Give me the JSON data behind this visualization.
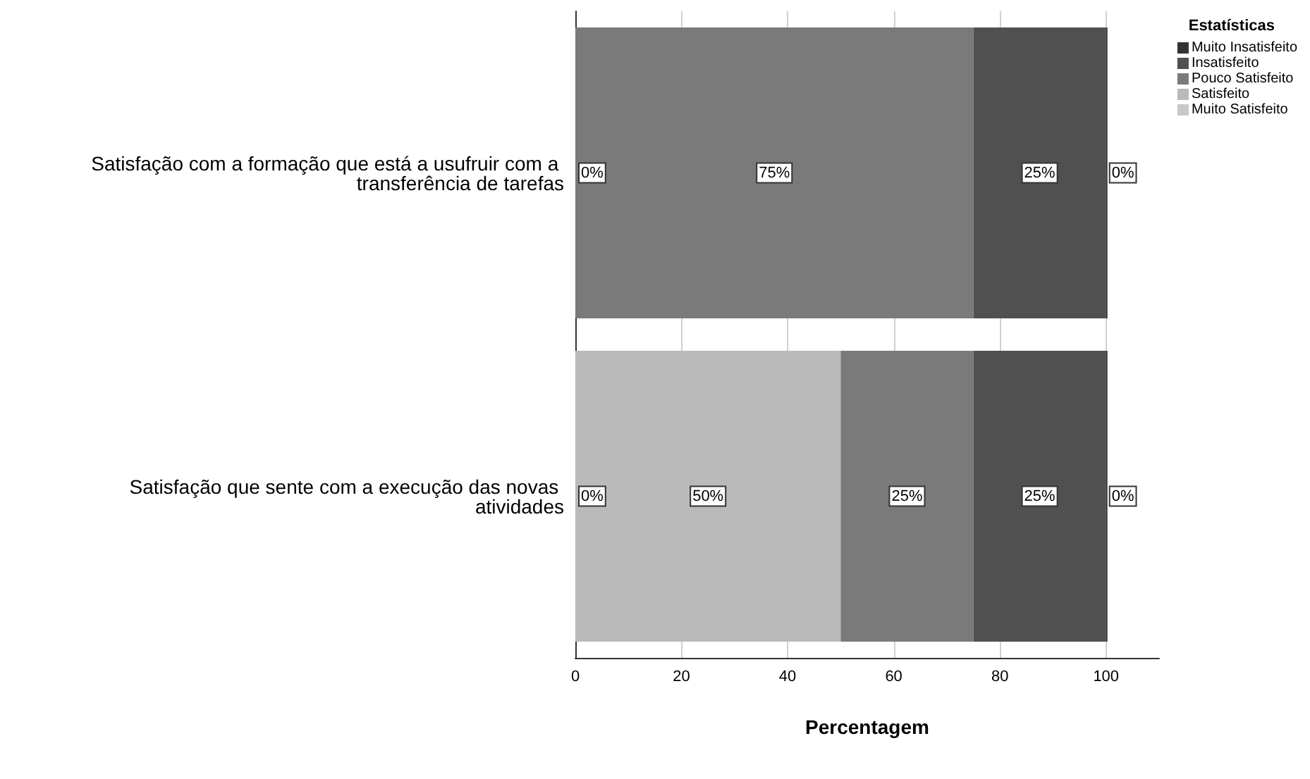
{
  "chart_data": {
    "type": "bar",
    "orientation": "horizontal",
    "stacked": true,
    "categories": [
      "Satisfação com a formação que está a usufruir com a transferência de tarefas",
      "Satisfação que sente com a execução das novas atividades"
    ],
    "series": [
      {
        "name": "Muito Satisfeito",
        "color": "#c8c8c8",
        "values": [
          0,
          0
        ],
        "value_labels": [
          "0%",
          "0%"
        ]
      },
      {
        "name": "Satisfeito",
        "color": "#bababa",
        "values": [
          0,
          50
        ],
        "value_labels": [
          null,
          "50%"
        ]
      },
      {
        "name": "Pouco Satisfeito",
        "color": "#7a7a7a",
        "values": [
          75,
          25
        ],
        "value_labels": [
          "75%",
          "25%"
        ]
      },
      {
        "name": "Insatisfeito",
        "color": "#505050",
        "values": [
          25,
          25
        ],
        "value_labels": [
          "25%",
          "25%"
        ]
      },
      {
        "name": "Muito Insatisfeito",
        "color": "#333333",
        "values": [
          0,
          0
        ],
        "value_labels": [
          "0%",
          "0%"
        ]
      }
    ],
    "xlabel": "Percentagem",
    "xlim": [
      0,
      110
    ],
    "xticks": [
      0,
      20,
      40,
      60,
      80,
      100
    ],
    "grid": "x",
    "legend": "top right",
    "legend_title": "Estatísticas"
  }
}
